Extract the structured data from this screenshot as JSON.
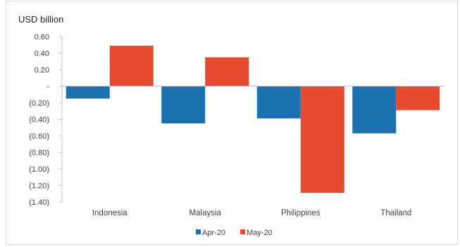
{
  "chart_data": {
    "type": "bar",
    "unit_label": "USD billion",
    "categories": [
      "Indonesia",
      "Malaysia",
      "Philippines",
      "Thailand"
    ],
    "series": [
      {
        "name": "Apr-20",
        "color": "#1a73b0",
        "values": [
          -0.15,
          -0.45,
          -0.39,
          -0.57
        ]
      },
      {
        "name": "May-20",
        "color": "#e84a2f",
        "values": [
          0.49,
          0.35,
          -1.29,
          -0.29
        ]
      }
    ],
    "ylim": [
      -1.4,
      0.6
    ],
    "y_ticks": [
      0.6,
      0.4,
      0.2,
      0,
      -0.2,
      -0.4,
      -0.6,
      -0.8,
      -1.0,
      -1.2,
      -1.4
    ],
    "y_tick_labels": [
      "0.60",
      "0.40",
      "0.20",
      "-",
      "(0.20)",
      "(0.40)",
      "(0.60)",
      "(0.80)",
      "(1.00)",
      "(1.20)",
      "(1.40)"
    ],
    "grid": false,
    "legend": "bottom-center"
  }
}
